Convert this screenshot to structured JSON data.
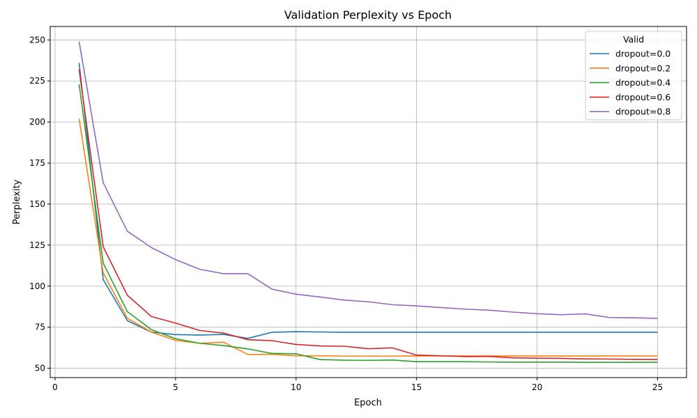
{
  "chart_data": {
    "type": "line",
    "title": "Validation Perplexity vs Epoch",
    "xlabel": "Epoch",
    "ylabel": "Perplexity",
    "xlim": [
      -0.2,
      26.2
    ],
    "ylim": [
      44.3,
      258.2
    ],
    "xticks": [
      0,
      5,
      10,
      15,
      20,
      25
    ],
    "yticks": [
      50,
      75,
      100,
      125,
      150,
      175,
      200,
      225,
      250
    ],
    "grid": true,
    "legend": {
      "title": "Valid",
      "placement": "top-right"
    },
    "x": [
      1,
      2,
      3,
      4,
      5,
      6,
      7,
      8,
      9,
      10,
      11,
      12,
      13,
      14,
      15,
      16,
      17,
      18,
      19,
      20,
      21,
      22,
      23,
      24,
      25
    ],
    "series": [
      {
        "name": "dropout=0.0",
        "color": "#1f77b4",
        "values": [
          236,
          104,
          79,
          72,
          70.5,
          70.2,
          70.6,
          68.2,
          71.9,
          72.3,
          72.1,
          71.9,
          71.9,
          71.9,
          71.9,
          71.9,
          71.9,
          71.9,
          71.9,
          71.9,
          71.9,
          71.9,
          71.9,
          71.9,
          71.9
        ]
      },
      {
        "name": "dropout=0.2",
        "color": "#ff7f0e",
        "values": [
          202,
          108,
          80.5,
          72,
          67,
          65.2,
          65.8,
          58.4,
          58.5,
          57.6,
          57.6,
          57.4,
          57.4,
          57.4,
          57.5,
          57.5,
          57.5,
          57.5,
          57.5,
          57.5,
          57.5,
          57.5,
          57.5,
          57.5,
          57.5
        ]
      },
      {
        "name": "dropout=0.4",
        "color": "#2ca02c",
        "values": [
          223,
          114,
          84.5,
          73.5,
          68,
          65.2,
          63.8,
          61.8,
          59,
          58.8,
          55.3,
          54.9,
          54.8,
          55,
          54,
          54,
          54,
          53.8,
          53.7,
          53.7,
          53.7,
          53.6,
          53.6,
          53.6,
          53.6
        ]
      },
      {
        "name": "dropout=0.6",
        "color": "#d62728",
        "values": [
          232,
          124,
          94.5,
          81.5,
          77.5,
          73,
          71.4,
          67.4,
          66.8,
          64.5,
          63.6,
          63.4,
          61.9,
          62.4,
          58,
          57.6,
          57.1,
          57.2,
          56.3,
          56.1,
          56,
          55.7,
          55.6,
          55.4,
          55.3
        ]
      },
      {
        "name": "dropout=0.8",
        "color": "#9467bd",
        "values": [
          249,
          163,
          133.5,
          123.5,
          116.2,
          110.3,
          107.6,
          107.6,
          98.2,
          95.1,
          93.4,
          91.5,
          90.5,
          88.7,
          88,
          87,
          86,
          85.4,
          84.2,
          83.2,
          82.6,
          83.1,
          80.9,
          80.7,
          80.4
        ]
      }
    ]
  }
}
